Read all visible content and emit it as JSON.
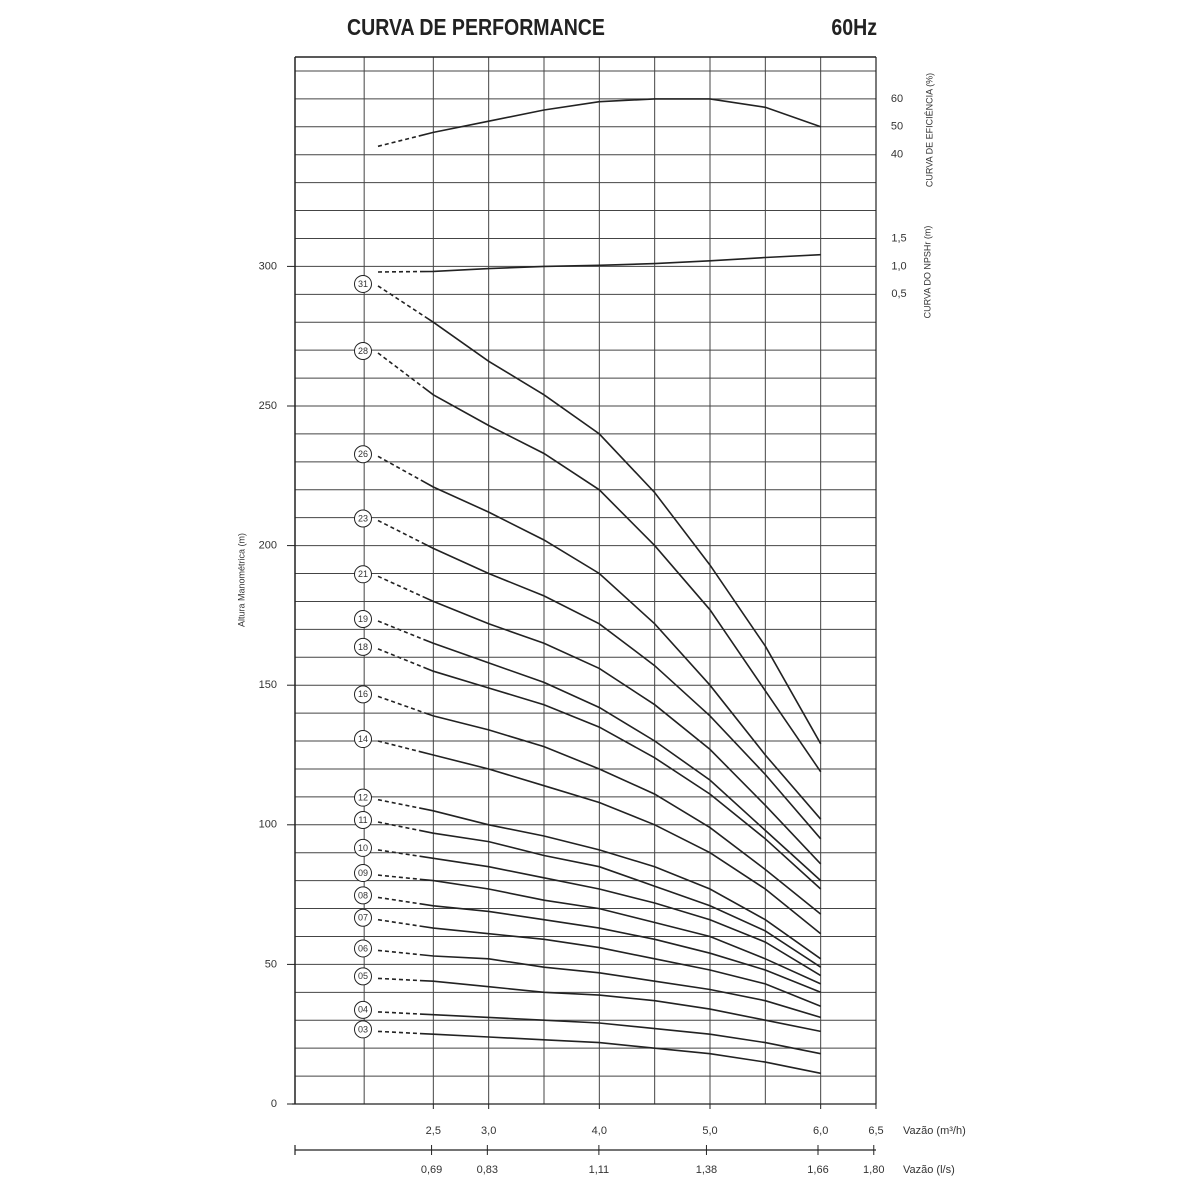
{
  "chart_data": {
    "type": "line",
    "title": "CURVA DE PERFORMANCE",
    "subtitle": "60Hz",
    "y_label": "Altura Manométrica (m)",
    "x_label": "Vazão (m³/h)",
    "x2_label": "Vazão (l/s)",
    "xlim": [
      1.25,
      6.5
    ],
    "ylim": [
      0,
      375
    ],
    "x2lim": [
      0.3472,
      1.8056
    ],
    "xticks": [
      {
        "value": 2.5,
        "label": "2,5"
      },
      {
        "value": 3,
        "label": "3,0"
      },
      {
        "value": 4,
        "label": "4,0"
      },
      {
        "value": 5,
        "label": "5,0"
      },
      {
        "value": 6,
        "label": "6,0"
      },
      {
        "value": 6.5,
        "label": "6,5"
      }
    ],
    "x2ticks": [
      {
        "value": 0.69,
        "label": "0,69"
      },
      {
        "value": 0.83,
        "label": "0,83"
      },
      {
        "value": 1.11,
        "label": "1,11"
      },
      {
        "value": 1.38,
        "label": "1,38"
      },
      {
        "value": 1.66,
        "label": "1,66"
      },
      {
        "value": 1.8,
        "label": "1,80"
      }
    ],
    "yticks": [
      0,
      50,
      100,
      150,
      200,
      250,
      300
    ],
    "x_grid": [
      1.875,
      2.5,
      3,
      3.5,
      4,
      4.5,
      5,
      5.5,
      6
    ],
    "y_grid": [
      10,
      20,
      30,
      40,
      50,
      60,
      70,
      80,
      90,
      100,
      110,
      120,
      130,
      140,
      150,
      160,
      170,
      180,
      190,
      200,
      210,
      220,
      230,
      240,
      250,
      260,
      270,
      280,
      290,
      300,
      310,
      320,
      330,
      340,
      350,
      360,
      370
    ],
    "x": [
      2.0,
      2.5,
      3.0,
      3.5,
      4.0,
      4.5,
      5.0,
      5.5,
      6.0
    ],
    "series": [
      {
        "name": "31",
        "color": "#222222",
        "values": [
          293,
          280,
          266,
          254,
          240,
          219,
          193,
          164,
          129
        ]
      },
      {
        "name": "28",
        "color": "#222222",
        "values": [
          269,
          254,
          243,
          233,
          220,
          200,
          177,
          148,
          119
        ]
      },
      {
        "name": "26",
        "color": "#222222",
        "values": [
          232,
          221,
          212,
          202,
          190,
          172,
          150,
          125,
          102
        ]
      },
      {
        "name": "23",
        "color": "#222222",
        "values": [
          209,
          199,
          190,
          182,
          172,
          157,
          139,
          118,
          95
        ]
      },
      {
        "name": "21",
        "color": "#222222",
        "values": [
          189,
          180,
          172,
          165,
          156,
          143,
          127,
          107,
          86
        ]
      },
      {
        "name": "19",
        "color": "#222222",
        "values": [
          173,
          165,
          158,
          151,
          142,
          130,
          116,
          98,
          80
        ]
      },
      {
        "name": "18",
        "color": "#222222",
        "values": [
          163,
          155,
          149,
          143,
          135,
          124,
          111,
          95,
          77
        ]
      },
      {
        "name": "16",
        "color": "#222222",
        "values": [
          146,
          139,
          134,
          128,
          120,
          111,
          99,
          84,
          68
        ]
      },
      {
        "name": "14",
        "color": "#222222",
        "values": [
          130,
          125,
          120,
          114,
          108,
          100,
          90,
          77,
          61
        ]
      },
      {
        "name": "12",
        "color": "#222222",
        "values": [
          109,
          105,
          100,
          96,
          91,
          85,
          77,
          66,
          52
        ]
      },
      {
        "name": "11",
        "color": "#222222",
        "values": [
          101,
          97,
          94,
          89,
          85,
          78,
          71,
          62,
          49
        ]
      },
      {
        "name": "10",
        "color": "#222222",
        "values": [
          91,
          88,
          85,
          81,
          77,
          72,
          66,
          58,
          46
        ]
      },
      {
        "name": "09",
        "color": "#222222",
        "values": [
          82,
          80,
          77,
          73,
          70,
          65,
          60,
          52,
          43
        ]
      },
      {
        "name": "08",
        "color": "#222222",
        "values": [
          74,
          71,
          69,
          66,
          63,
          59,
          54,
          48,
          40
        ]
      },
      {
        "name": "07",
        "color": "#222222",
        "values": [
          66,
          63,
          61,
          59,
          56,
          52,
          48,
          43,
          35
        ]
      },
      {
        "name": "06",
        "color": "#222222",
        "values": [
          55,
          53,
          52,
          49,
          47,
          44,
          41,
          37,
          31
        ]
      },
      {
        "name": "05",
        "color": "#222222",
        "values": [
          45,
          44,
          42,
          40,
          39,
          37,
          34,
          30,
          26
        ]
      },
      {
        "name": "04",
        "color": "#222222",
        "values": [
          33,
          32,
          31,
          30,
          29,
          27,
          25,
          22,
          18
        ]
      },
      {
        "name": "03",
        "color": "#222222",
        "values": [
          26,
          25,
          24,
          23,
          22,
          20,
          18,
          15,
          11
        ]
      }
    ],
    "efficiency": {
      "axis_label": "CURVA DE EFICIÊNCIA (%)",
      "lim": [
        -300,
        75
      ],
      "ticks": [
        60,
        50,
        40
      ],
      "color": "#222222",
      "values": [
        43,
        48,
        52,
        56,
        59,
        60,
        60,
        57,
        50
      ]
    },
    "npsh": {
      "axis_label": "CURVA DO NPSHr (m)",
      "lim": [
        -14,
        4.75
      ],
      "color": "#222222",
      "ticks": [
        {
          "value": 1.5,
          "label": "1,5"
        },
        {
          "value": 1.0,
          "label": "1,0"
        },
        {
          "value": 0.5,
          "label": "0,5"
        }
      ],
      "values": [
        0.9,
        0.91,
        0.96,
        1.0,
        1.02,
        1.05,
        1.1,
        1.16,
        1.21
      ]
    }
  }
}
